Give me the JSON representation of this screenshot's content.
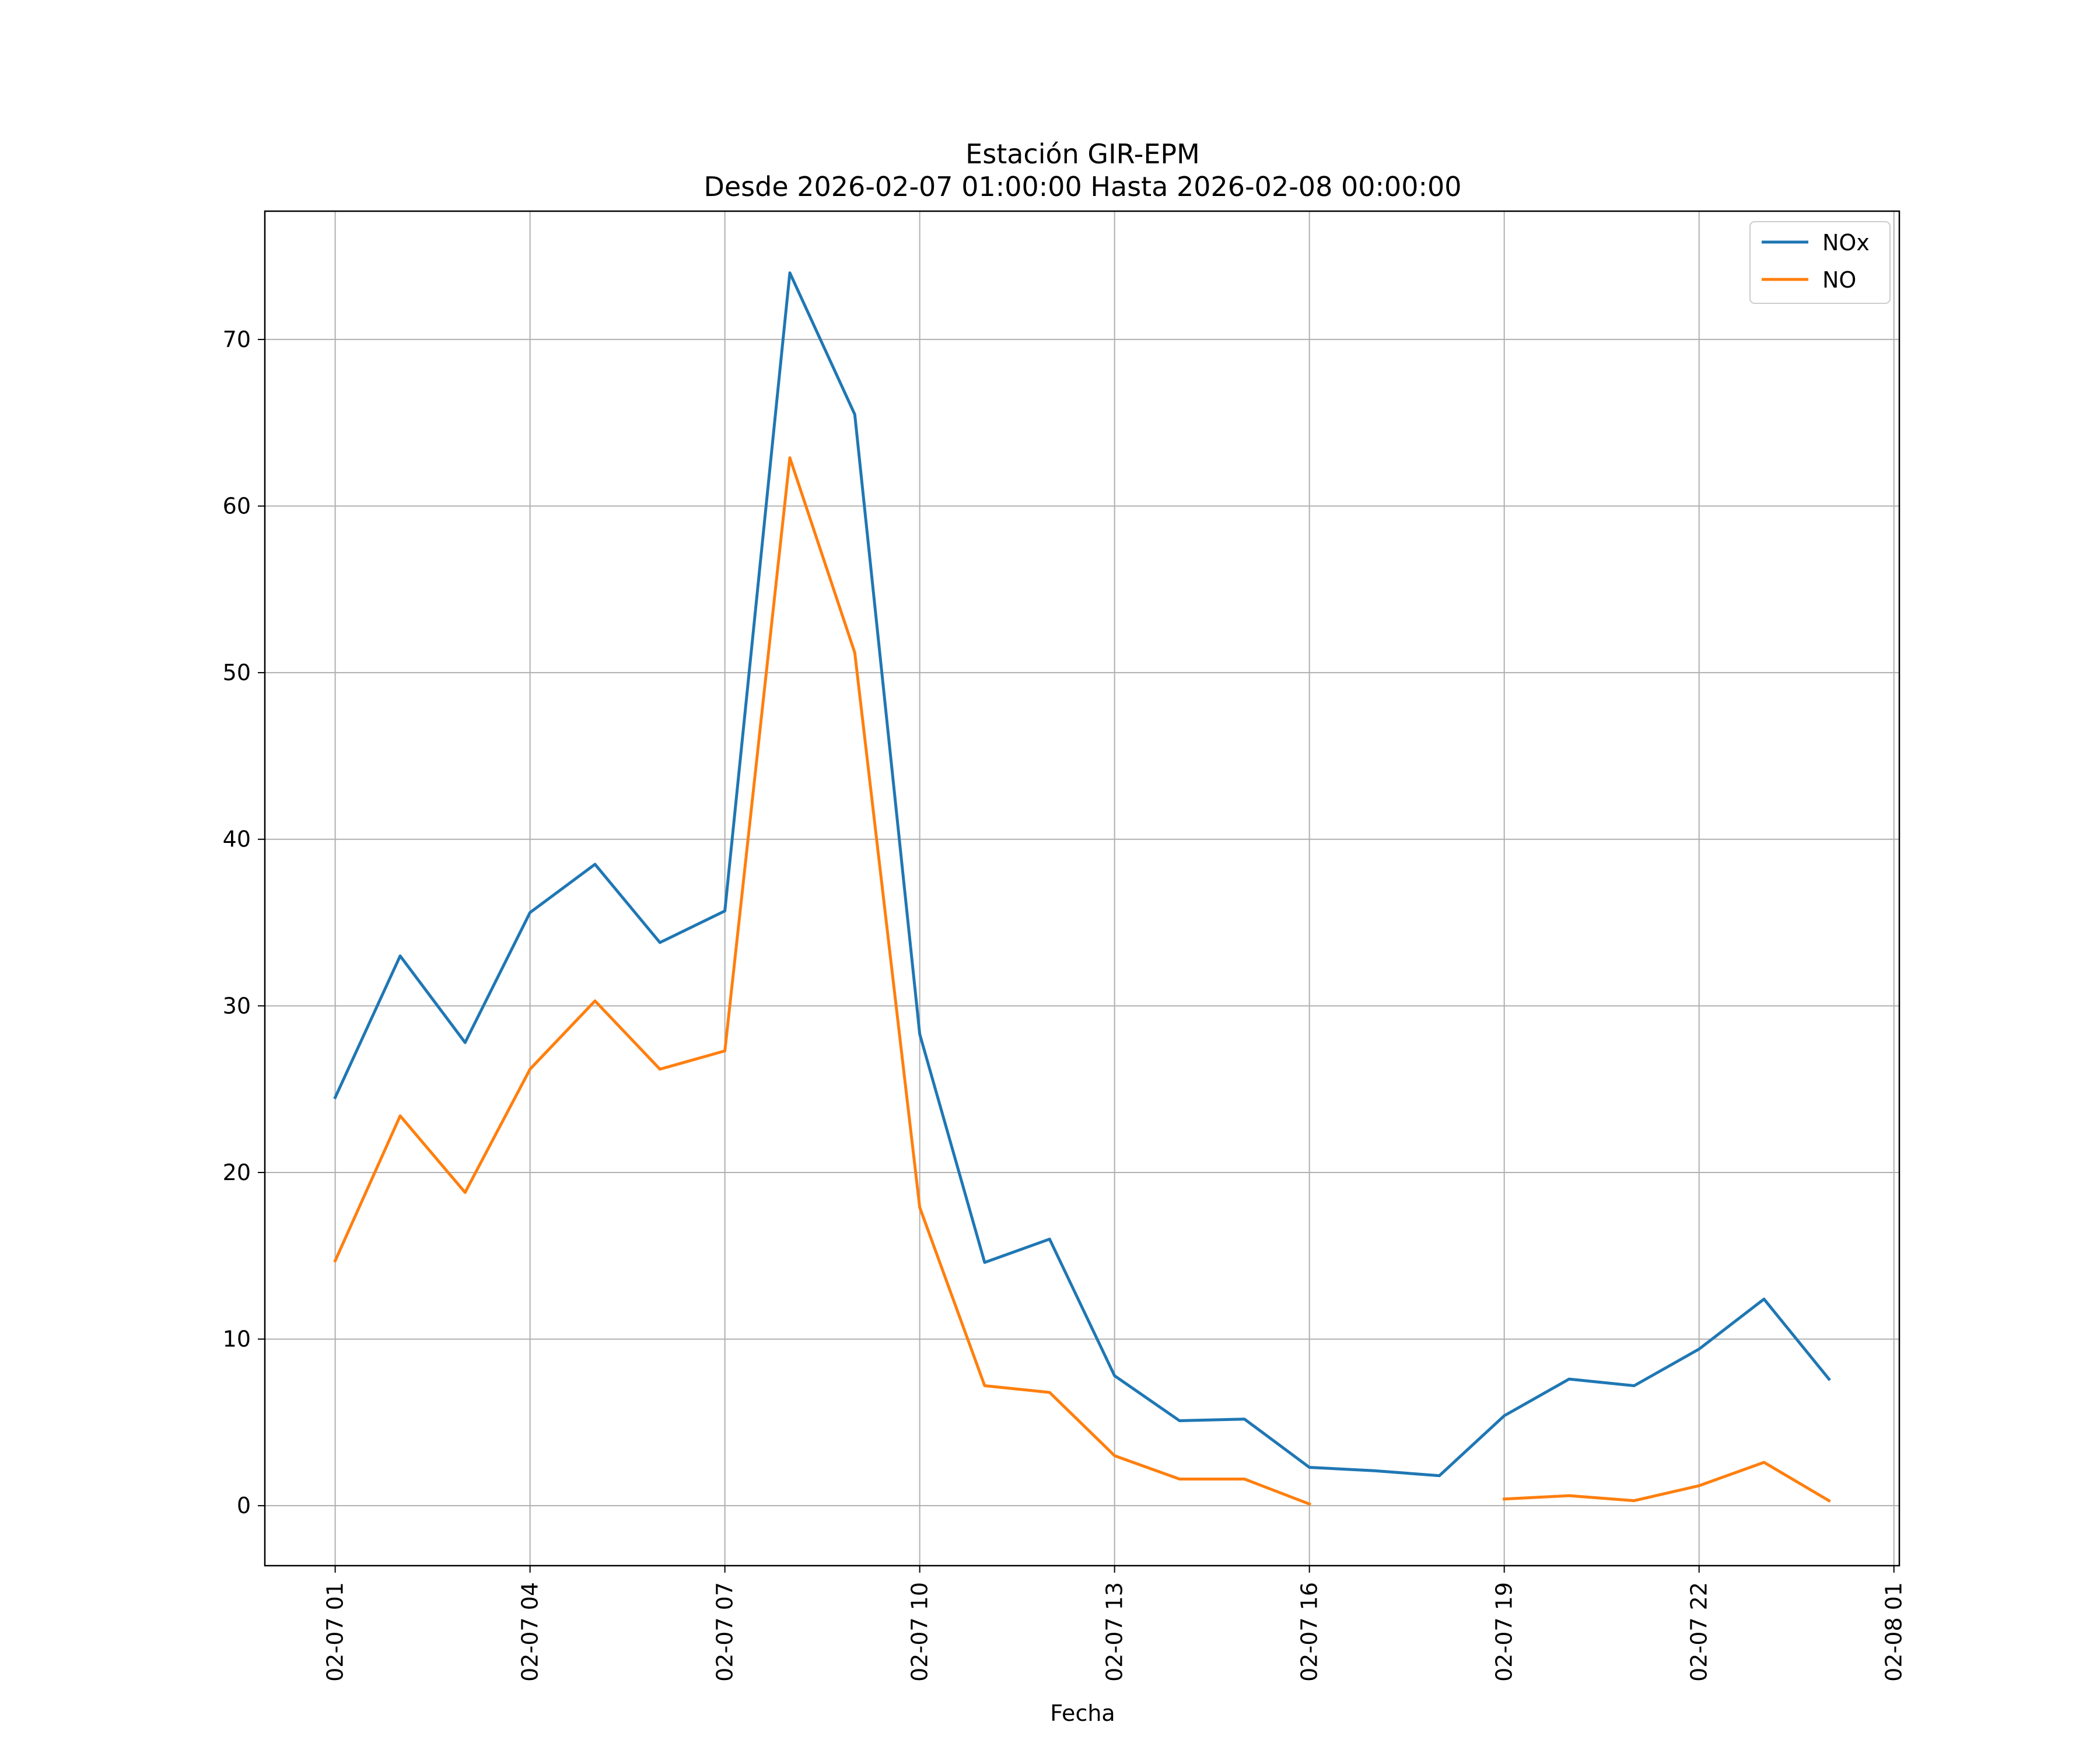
{
  "chart_data": {
    "type": "line",
    "title": "Estación GIR-EPM",
    "subtitle": "Desde 2026-02-07 01:00:00 Hasta 2026-02-08 00:00:00",
    "xlabel": "Fecha",
    "ylabel": "",
    "x": [
      "2026-02-07 01:00",
      "2026-02-07 02:00",
      "2026-02-07 03:00",
      "2026-02-07 04:00",
      "2026-02-07 05:00",
      "2026-02-07 06:00",
      "2026-02-07 07:00",
      "2026-02-07 08:00",
      "2026-02-07 09:00",
      "2026-02-07 10:00",
      "2026-02-07 11:00",
      "2026-02-07 12:00",
      "2026-02-07 13:00",
      "2026-02-07 14:00",
      "2026-02-07 15:00",
      "2026-02-07 16:00",
      "2026-02-07 17:00",
      "2026-02-07 18:00",
      "2026-02-07 19:00",
      "2026-02-07 20:00",
      "2026-02-07 21:00",
      "2026-02-07 22:00",
      "2026-02-07 23:00",
      "2026-02-08 00:00"
    ],
    "xlim": [
      "2026-02-06 23:55",
      "2026-02-08 01:05"
    ],
    "xticks": [
      "2026-02-07 01:00",
      "2026-02-07 04:00",
      "2026-02-07 07:00",
      "2026-02-07 10:00",
      "2026-02-07 13:00",
      "2026-02-07 16:00",
      "2026-02-07 19:00",
      "2026-02-07 22:00",
      "2026-02-08 01:00"
    ],
    "xtick_labels": [
      "02-07 01",
      "02-07 04",
      "02-07 07",
      "02-07 10",
      "02-07 13",
      "02-07 16",
      "02-07 19",
      "02-07 22",
      "02-08 01"
    ],
    "ylim": [
      -3.6,
      77.7
    ],
    "yticks": [
      0,
      10,
      20,
      30,
      40,
      50,
      60,
      70
    ],
    "ytick_labels": [
      "0",
      "10",
      "20",
      "30",
      "40",
      "50",
      "60",
      "70"
    ],
    "grid": true,
    "legend_position": "top-right",
    "series": [
      {
        "name": "NOx",
        "color": "#1f77b4",
        "values": [
          24.5,
          33.0,
          27.8,
          35.6,
          38.5,
          33.8,
          35.7,
          74.0,
          65.5,
          28.3,
          14.6,
          16.0,
          7.8,
          5.1,
          5.2,
          2.3,
          2.1,
          1.8,
          5.4,
          7.6,
          7.2,
          9.4,
          12.4,
          7.6
        ]
      },
      {
        "name": "NO",
        "color": "#ff7f0e",
        "values": [
          14.7,
          23.4,
          18.8,
          26.2,
          30.3,
          26.2,
          27.3,
          62.9,
          51.2,
          17.9,
          7.2,
          6.8,
          3.0,
          1.6,
          1.6,
          0.1,
          null,
          null,
          0.4,
          0.6,
          0.3,
          1.2,
          2.6,
          0.3
        ]
      }
    ]
  }
}
